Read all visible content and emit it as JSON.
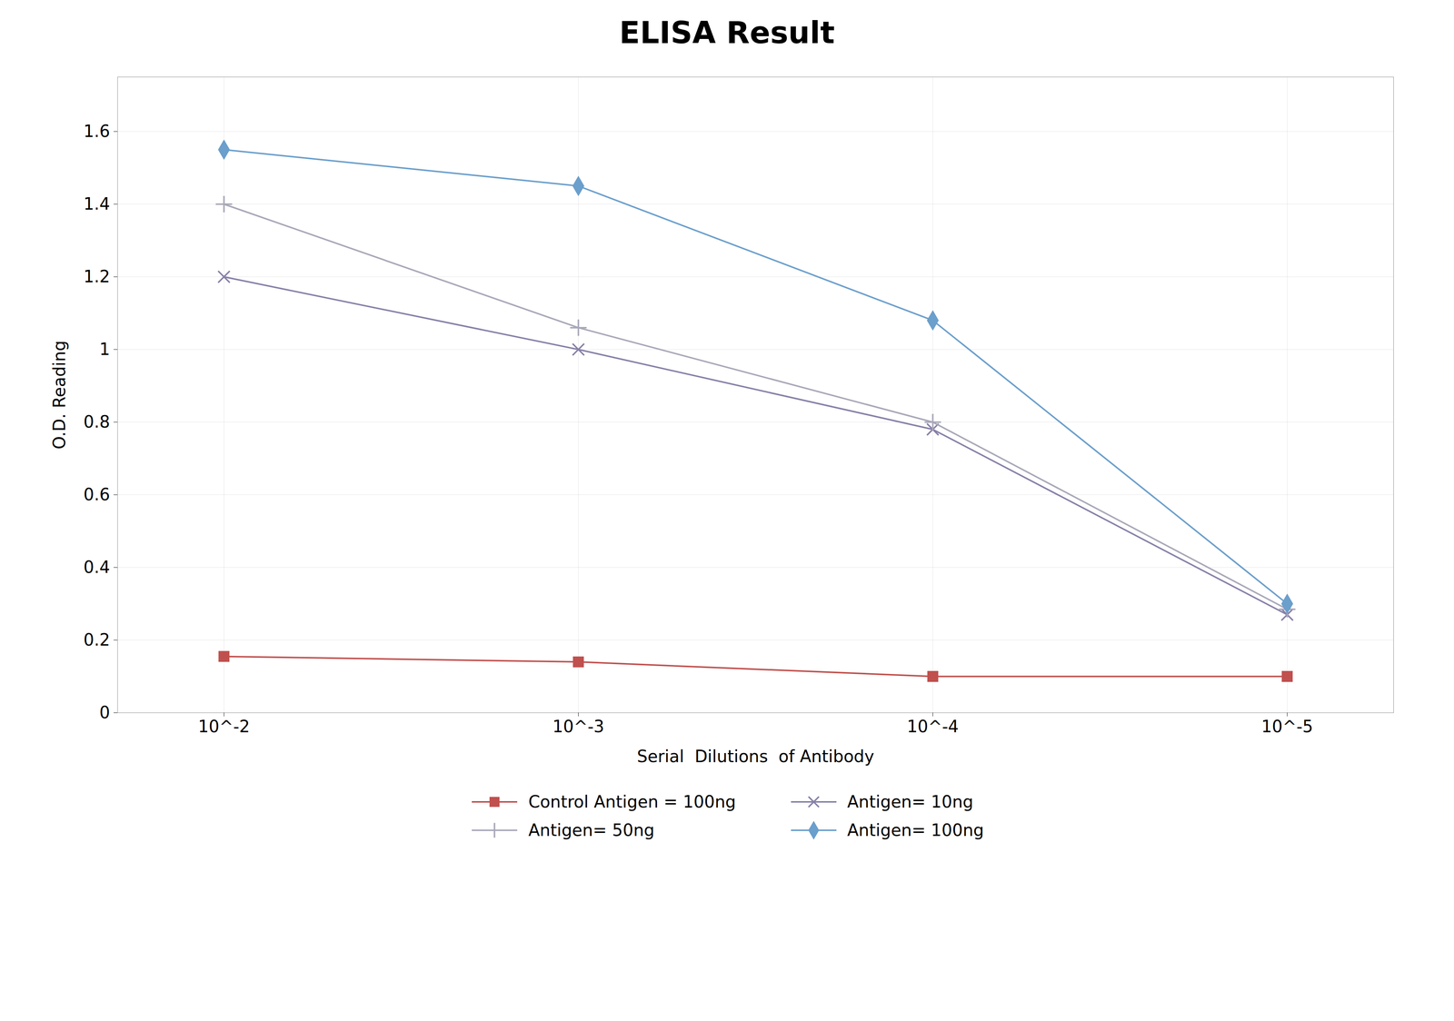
{
  "chart_data": {
    "type": "line",
    "title": "ELISA Result",
    "x_label": "Serial  Dilutions  of Antibody",
    "y_label": "O.D. Reading",
    "categories": [
      "10^-2",
      "10^-3",
      "10^-4",
      "10^-5"
    ],
    "series": [
      {
        "name": "Control Antigen = 100ng",
        "color": "#C0504D",
        "marker": "square",
        "line_style": "solid",
        "values": [
          0.155,
          0.14,
          0.1,
          0.1
        ]
      },
      {
        "name": "Antigen= 10ng",
        "color": "#8880A8",
        "marker": "x",
        "line_style": "solid",
        "values": [
          1.2,
          1.0,
          0.78,
          0.27
        ]
      },
      {
        "name": "Antigen= 50ng",
        "color": "#A8A8B8",
        "marker": "plus",
        "line_style": "solid",
        "values": [
          1.4,
          1.06,
          0.8,
          0.285
        ]
      },
      {
        "name": "Antigen= 100ng",
        "color": "#6B9FCC",
        "marker": "diamond",
        "line_style": "solid",
        "values": [
          1.55,
          1.45,
          1.08,
          0.3
        ]
      }
    ],
    "ylim": [
      0,
      1.75
    ],
    "yticks": [
      0,
      0.2,
      0.4,
      0.6,
      0.8,
      1,
      1.2,
      1.4,
      1.6
    ],
    "grid": true,
    "legend": "bottom"
  }
}
